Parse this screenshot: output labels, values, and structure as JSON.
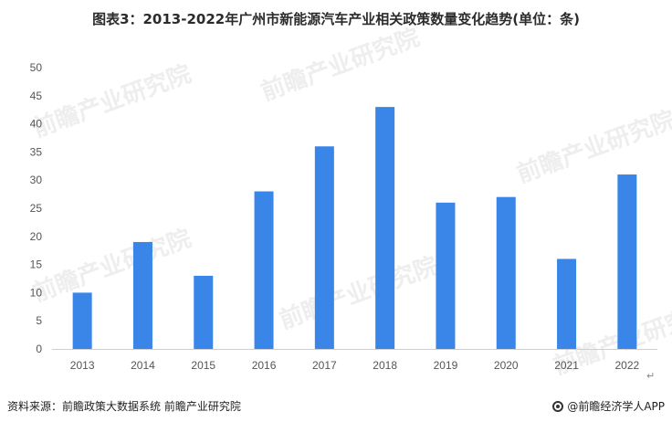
{
  "title": "图表3：2013-2022年广州市新能源汽车产业相关政策数量变化趋势(单位：条)",
  "source": "资料来源：前瞻政策大数据系统 前瞻产业研究院",
  "brand": "@前瞻经济学人APP",
  "watermark": "前瞻产业研究院",
  "colors": {
    "bar": "#3a86e8",
    "axis": "#cfcfcf",
    "text": "#555555"
  },
  "chart_data": {
    "type": "bar",
    "title": "图表3：2013-2022年广州市新能源汽车产业相关政策数量变化趋势(单位：条)",
    "xlabel": "",
    "ylabel": "",
    "categories": [
      "2013",
      "2014",
      "2015",
      "2016",
      "2017",
      "2018",
      "2019",
      "2020",
      "2021",
      "2022"
    ],
    "values": [
      10,
      19,
      13,
      28,
      36,
      43,
      26,
      27,
      16,
      31
    ],
    "ylim": [
      0,
      50
    ],
    "yticks": [
      0,
      5,
      10,
      15,
      20,
      25,
      30,
      35,
      40,
      45,
      50
    ],
    "grid": false,
    "legend": "none"
  }
}
